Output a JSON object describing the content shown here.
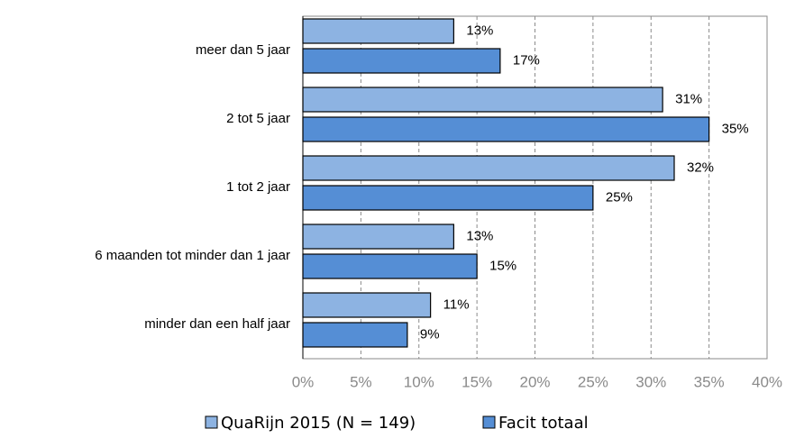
{
  "chart_data": {
    "type": "hbar",
    "categories": [
      "meer dan 5 jaar",
      "2 tot 5 jaar",
      "1 tot 2 jaar",
      "6 maanden tot minder dan 1 jaar",
      "minder dan een half jaar"
    ],
    "series": [
      {
        "name": "QuaRijn 2015 (N = 149)",
        "color": "#8db3e2",
        "values": [
          13,
          31,
          32,
          13,
          11
        ],
        "value_labels": [
          "13%",
          "31%",
          "32%",
          "13%",
          "11%"
        ]
      },
      {
        "name": "Facit totaal",
        "color": "#558ed5",
        "values": [
          17,
          35,
          25,
          15,
          9
        ],
        "value_labels": [
          "17%",
          "35%",
          "25%",
          "15%",
          "9%"
        ]
      }
    ],
    "xlim": [
      0,
      40
    ],
    "xticks": [
      {
        "value": 0,
        "label": "0%"
      },
      {
        "value": 5,
        "label": "5%"
      },
      {
        "value": 10,
        "label": "10%"
      },
      {
        "value": 15,
        "label": "15%"
      },
      {
        "value": 20,
        "label": "20%"
      },
      {
        "value": 25,
        "label": "25%"
      },
      {
        "value": 30,
        "label": "30%"
      },
      {
        "value": 35,
        "label": "35%"
      },
      {
        "value": 40,
        "label": "40%"
      }
    ],
    "grid": true,
    "legend": "bottom"
  }
}
